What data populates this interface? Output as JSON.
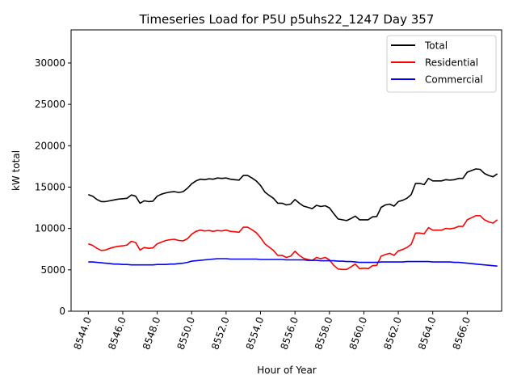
{
  "chart_data": {
    "type": "line",
    "title": "Timeseries Load for P5U p5uhs22_1247  Day 357",
    "xlabel": "Hour of Year",
    "ylabel": "kW total",
    "xlim": [
      8543.0,
      8568.0
    ],
    "ylim": [
      0,
      34000
    ],
    "xticks": [
      8544,
      8546,
      8548,
      8550,
      8552,
      8554,
      8556,
      8558,
      8560,
      8562,
      8564,
      8566
    ],
    "xtick_labels": [
      "8544.0",
      "8546.0",
      "8548.0",
      "8550.0",
      "8552.0",
      "8554.0",
      "8556.0",
      "8558.0",
      "8560.0",
      "8562.0",
      "8564.0",
      "8566.0"
    ],
    "yticks": [
      0,
      5000,
      10000,
      15000,
      20000,
      25000,
      30000
    ],
    "ytick_labels": [
      "0",
      "5000",
      "10000",
      "15000",
      "20000",
      "25000",
      "30000"
    ],
    "legend_position": "top-right",
    "x_start": 8544.0,
    "x_step": 0.25,
    "series": [
      {
        "name": "Total",
        "color": "#000000",
        "values": [
          14100,
          13900,
          13500,
          13250,
          13250,
          13350,
          13450,
          13550,
          13600,
          13650,
          14050,
          13900,
          13050,
          13350,
          13250,
          13300,
          13900,
          14150,
          14300,
          14400,
          14450,
          14350,
          14450,
          14850,
          15400,
          15750,
          15950,
          15900,
          16000,
          15950,
          16100,
          16050,
          16100,
          15950,
          15900,
          15850,
          16400,
          16400,
          16100,
          15750,
          15200,
          14400,
          14000,
          13650,
          13050,
          13050,
          12850,
          12950,
          13500,
          13050,
          12700,
          12550,
          12400,
          12800,
          12650,
          12750,
          12500,
          11800,
          11150,
          11050,
          10950,
          11200,
          11500,
          11050,
          11050,
          11050,
          11400,
          11450,
          12550,
          12850,
          12950,
          12700,
          13250,
          13400,
          13650,
          14100,
          15450,
          15450,
          15300,
          16050,
          15750,
          15750,
          15750,
          15900,
          15850,
          15900,
          16050,
          16050,
          16800,
          17000,
          17200,
          17150,
          16650,
          16400,
          16250,
          16600
        ]
      },
      {
        "name": "Residential",
        "color": "#ff0000",
        "values": [
          8150,
          7950,
          7600,
          7350,
          7400,
          7600,
          7750,
          7850,
          7900,
          8000,
          8450,
          8300,
          7400,
          7700,
          7600,
          7650,
          8150,
          8350,
          8550,
          8650,
          8700,
          8550,
          8500,
          8750,
          9300,
          9650,
          9800,
          9700,
          9750,
          9650,
          9750,
          9700,
          9800,
          9650,
          9600,
          9550,
          10150,
          10150,
          9850,
          9500,
          8900,
          8150,
          7750,
          7350,
          6750,
          6750,
          6500,
          6650,
          7250,
          6750,
          6400,
          6250,
          6150,
          6500,
          6350,
          6500,
          6200,
          5550,
          5100,
          5050,
          5050,
          5350,
          5700,
          5150,
          5200,
          5150,
          5500,
          5550,
          6650,
          6850,
          7000,
          6750,
          7300,
          7450,
          7700,
          8100,
          9450,
          9450,
          9350,
          10100,
          9800,
          9800,
          9800,
          10000,
          9950,
          10050,
          10250,
          10250,
          11050,
          11300,
          11550,
          11550,
          11050,
          10800,
          10650,
          11050
        ]
      },
      {
        "name": "Commercial",
        "color": "#0000ff",
        "values": [
          5950,
          5950,
          5900,
          5850,
          5800,
          5750,
          5700,
          5700,
          5650,
          5650,
          5600,
          5600,
          5600,
          5600,
          5600,
          5600,
          5650,
          5650,
          5650,
          5700,
          5700,
          5750,
          5800,
          5900,
          6050,
          6100,
          6150,
          6200,
          6250,
          6300,
          6350,
          6350,
          6350,
          6300,
          6300,
          6300,
          6300,
          6300,
          6300,
          6300,
          6250,
          6250,
          6250,
          6250,
          6250,
          6250,
          6200,
          6200,
          6200,
          6200,
          6200,
          6150,
          6150,
          6150,
          6100,
          6100,
          6100,
          6100,
          6050,
          6050,
          6000,
          6000,
          5950,
          5900,
          5900,
          5900,
          5900,
          5900,
          5950,
          5950,
          5950,
          5950,
          5950,
          5950,
          6000,
          6000,
          6000,
          6000,
          6000,
          6000,
          5950,
          5950,
          5950,
          5950,
          5950,
          5900,
          5900,
          5850,
          5800,
          5750,
          5700,
          5650,
          5600,
          5550,
          5500,
          5450
        ]
      }
    ]
  }
}
